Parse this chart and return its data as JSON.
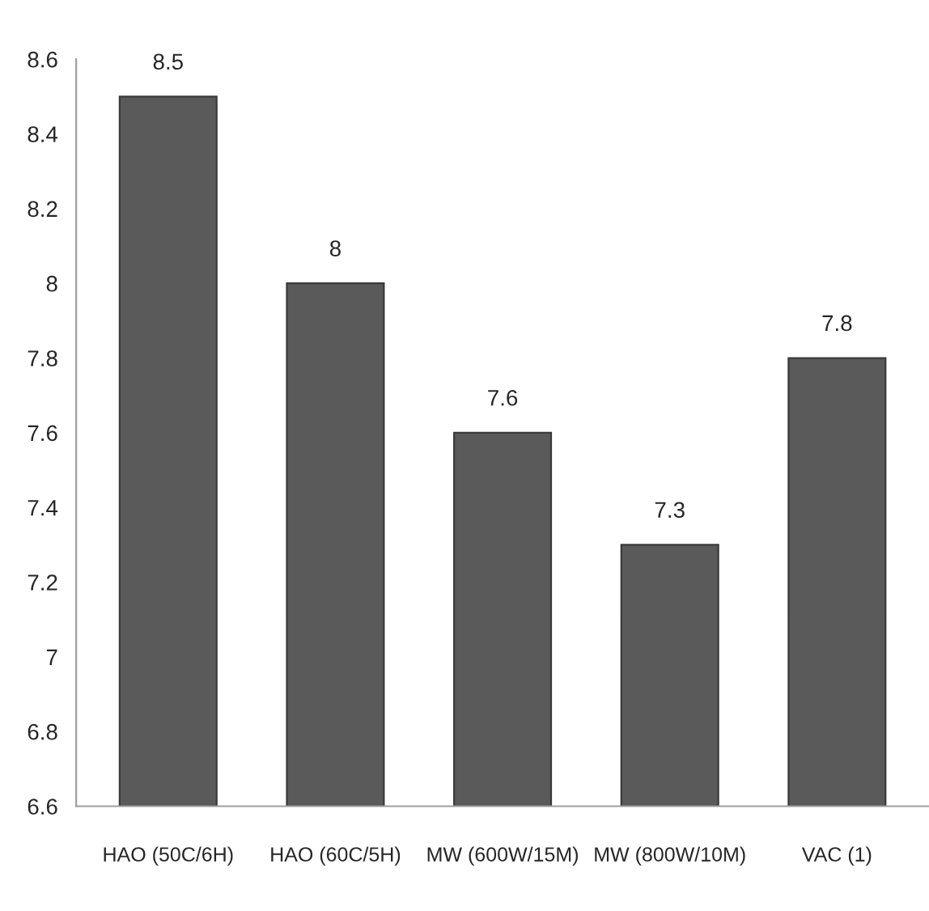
{
  "chart_data": {
    "type": "bar",
    "categories": [
      "HAO (50C/6H)",
      "HAO (60C/5H)",
      "MW (600W/15M)",
      "MW (800W/10M)",
      "VAC (1)"
    ],
    "values": [
      8.5,
      8,
      7.6,
      7.3,
      7.8
    ],
    "color": "#5a5a5a",
    "ylim": [
      6.6,
      8.6
    ],
    "yticks": [
      6.6,
      6.8,
      7,
      7.2,
      7.4,
      7.6,
      7.8,
      8,
      8.2,
      8.4,
      8.6
    ],
    "data_labels": true,
    "grid": false
  }
}
